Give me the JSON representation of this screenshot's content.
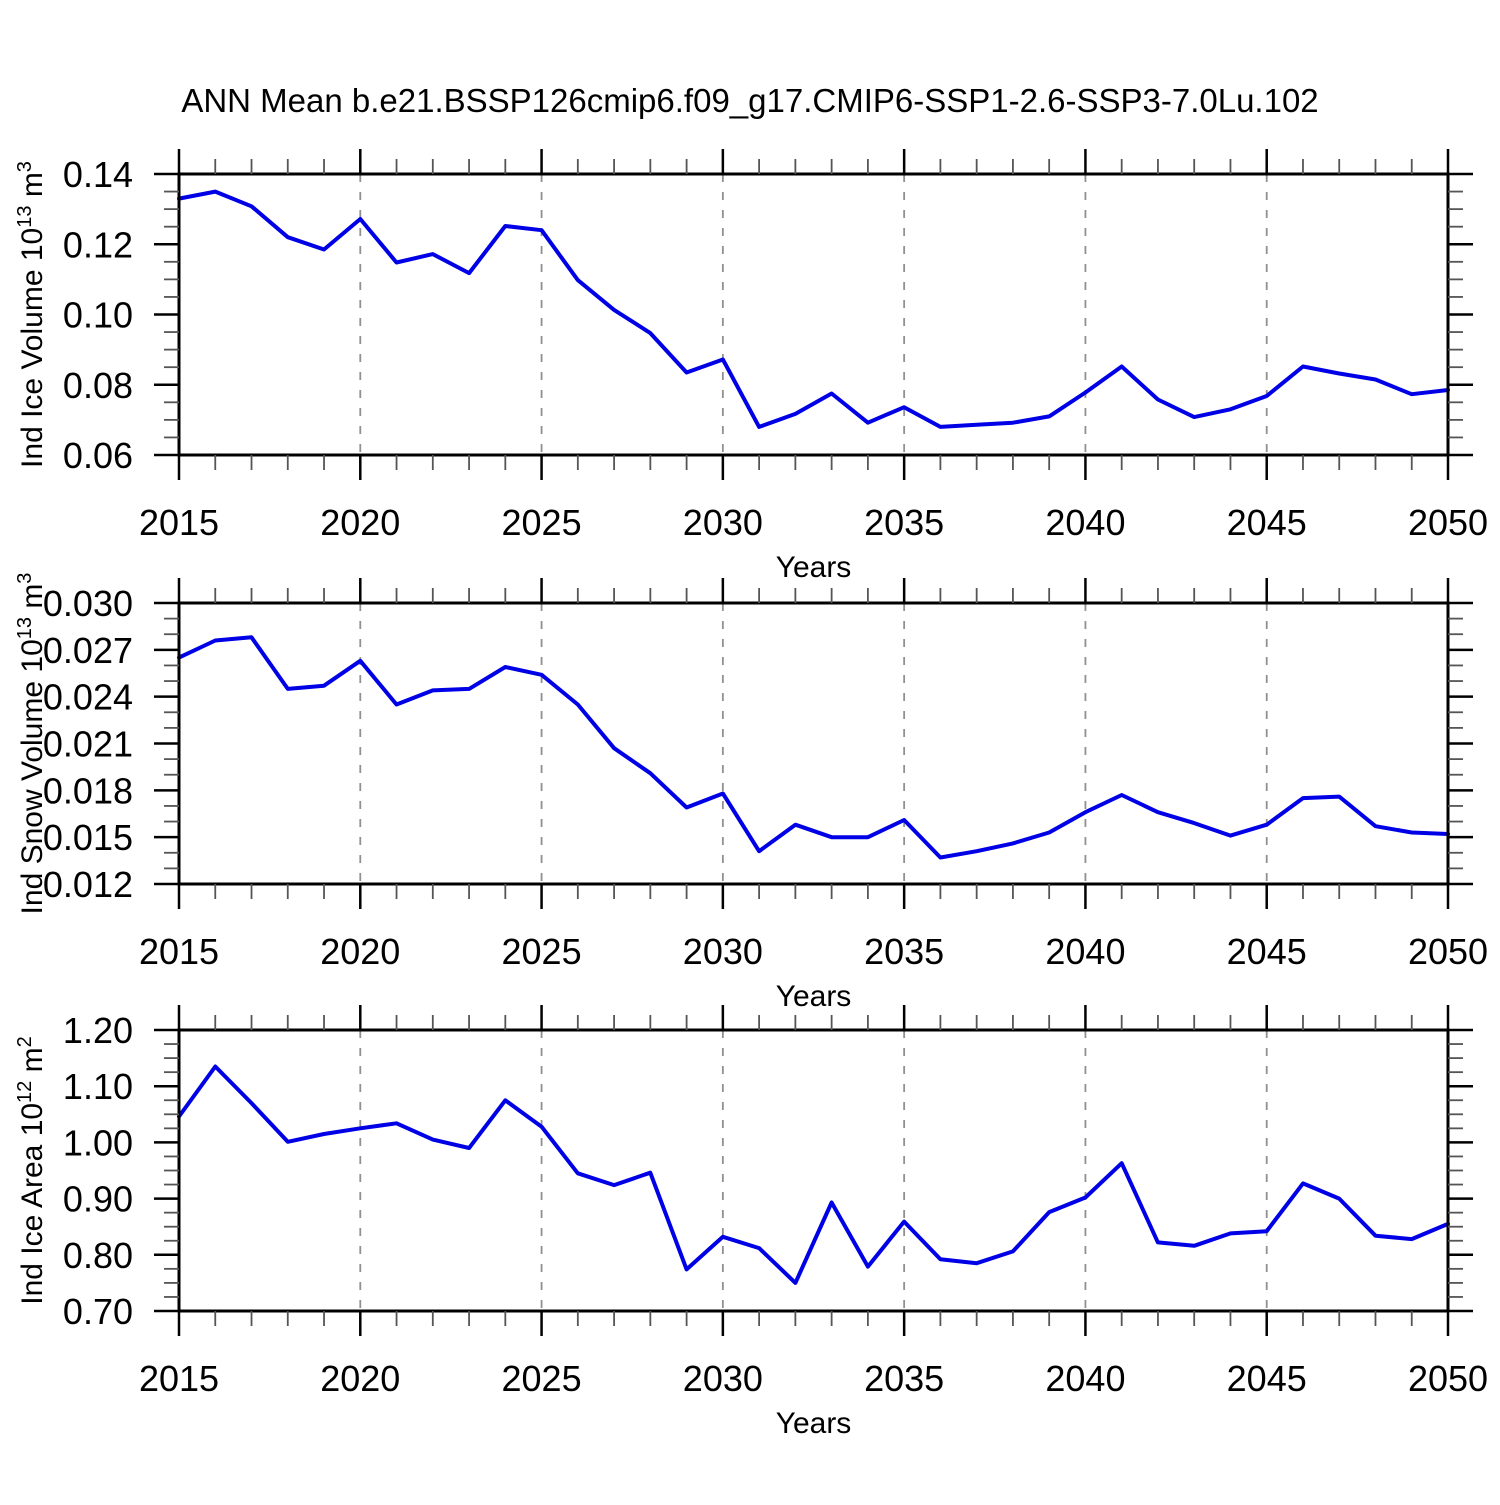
{
  "figure": {
    "title": "ANN Mean b.e21.BSSP126cmip6.f09_g17.CMIP6-SSP1-2.6-SSP3-7.0Lu.102",
    "background_color": "#ffffff",
    "line_color": "#0000e6",
    "grid_color": "#909090",
    "frame_color": "#000000",
    "major_tick_color": "#000000",
    "minor_tick_color": "#555555",
    "text_color": "#000000"
  },
  "chart_data": [
    {
      "type": "line",
      "series_name": "Ind Ice Volume",
      "ylabel": "Ind Ice Volume 10^13 m^3",
      "ylabel_segments": [
        {
          "t": "Ind Ice Volume 10"
        },
        {
          "t": "13",
          "sup": true
        },
        {
          "t": " m"
        },
        {
          "t": "3",
          "sup": true
        }
      ],
      "xlabel": "Years",
      "xlim": [
        2015,
        2050
      ],
      "xtick_major": 5,
      "xtick_minor": 1,
      "xtick_labels": [
        "2015",
        "2020",
        "2025",
        "2030",
        "2035",
        "2040",
        "2045",
        "2050"
      ],
      "gridline_years": [
        2020,
        2025,
        2030,
        2035,
        2040,
        2045
      ],
      "grid_style": "vertical-dashed",
      "ylim": [
        0.06,
        0.14
      ],
      "ytick_major": 0.02,
      "ytick_minor": 0.005,
      "ytick_labels": [
        "0.06",
        "0.08",
        "0.10",
        "0.12",
        "0.14"
      ],
      "x": [
        2015,
        2016,
        2017,
        2018,
        2019,
        2020,
        2021,
        2022,
        2023,
        2024,
        2025,
        2026,
        2027,
        2028,
        2029,
        2030,
        2031,
        2032,
        2033,
        2034,
        2035,
        2036,
        2037,
        2038,
        2039,
        2040,
        2041,
        2042,
        2043,
        2044,
        2045,
        2046,
        2047,
        2048,
        2049,
        2050
      ],
      "values": [
        0.133,
        0.135,
        0.1308,
        0.122,
        0.1185,
        0.1272,
        0.1148,
        0.1172,
        0.1118,
        0.1252,
        0.124,
        0.1098,
        0.1013,
        0.0947,
        0.0835,
        0.0872,
        0.068,
        0.0717,
        0.0775,
        0.0692,
        0.0736,
        0.068,
        0.0686,
        0.0692,
        0.071,
        0.0778,
        0.0852,
        0.0758,
        0.0708,
        0.073,
        0.0768,
        0.0852,
        0.0832,
        0.0815,
        0.0773,
        0.0785
      ]
    },
    {
      "type": "line",
      "series_name": "Ind Snow Volume",
      "ylabel": "Ind Snow Volume 10^13 m^3",
      "ylabel_segments": [
        {
          "t": "Ind Snow Volume 10"
        },
        {
          "t": "13",
          "sup": true
        },
        {
          "t": " m"
        },
        {
          "t": "3",
          "sup": true
        }
      ],
      "xlabel": "Years",
      "xlim": [
        2015,
        2050
      ],
      "xtick_major": 5,
      "xtick_minor": 1,
      "xtick_labels": [
        "2015",
        "2020",
        "2025",
        "2030",
        "2035",
        "2040",
        "2045",
        "2050"
      ],
      "gridline_years": [
        2020,
        2025,
        2030,
        2035,
        2040,
        2045
      ],
      "grid_style": "vertical-dashed",
      "ylim": [
        0.012,
        0.03
      ],
      "ytick_major": 0.003,
      "ytick_minor": 0.001,
      "ytick_labels": [
        "0.012",
        "0.015",
        "0.018",
        "0.021",
        "0.024",
        "0.027",
        "0.030"
      ],
      "x": [
        2015,
        2016,
        2017,
        2018,
        2019,
        2020,
        2021,
        2022,
        2023,
        2024,
        2025,
        2026,
        2027,
        2028,
        2029,
        2030,
        2031,
        2032,
        2033,
        2034,
        2035,
        2036,
        2037,
        2038,
        2039,
        2040,
        2041,
        2042,
        2043,
        2044,
        2045,
        2046,
        2047,
        2048,
        2049,
        2050
      ],
      "values": [
        0.0265,
        0.0276,
        0.0278,
        0.0245,
        0.0247,
        0.0263,
        0.0235,
        0.0244,
        0.0245,
        0.0259,
        0.0254,
        0.0235,
        0.0207,
        0.0191,
        0.0169,
        0.0178,
        0.0141,
        0.0158,
        0.015,
        0.015,
        0.0161,
        0.0137,
        0.0141,
        0.0146,
        0.0153,
        0.0166,
        0.0177,
        0.0166,
        0.0159,
        0.0151,
        0.0158,
        0.0175,
        0.0176,
        0.0157,
        0.0153,
        0.0152
      ]
    },
    {
      "type": "line",
      "series_name": "Ind Ice Area",
      "ylabel": "Ind Ice Area 10^12 m^2",
      "ylabel_segments": [
        {
          "t": "Ind Ice Area 10"
        },
        {
          "t": "12",
          "sup": true
        },
        {
          "t": " m"
        },
        {
          "t": "2",
          "sup": true
        }
      ],
      "xlabel": "Years",
      "xlim": [
        2015,
        2050
      ],
      "xtick_major": 5,
      "xtick_minor": 1,
      "xtick_labels": [
        "2015",
        "2020",
        "2025",
        "2030",
        "2035",
        "2040",
        "2045",
        "2050"
      ],
      "gridline_years": [
        2020,
        2025,
        2030,
        2035,
        2040,
        2045
      ],
      "grid_style": "vertical-dashed",
      "ylim": [
        0.7,
        1.2
      ],
      "ytick_major": 0.1,
      "ytick_minor": 0.025,
      "ytick_labels": [
        "0.70",
        "0.80",
        "0.90",
        "1.00",
        "1.10",
        "1.20"
      ],
      "x": [
        2015,
        2016,
        2017,
        2018,
        2019,
        2020,
        2021,
        2022,
        2023,
        2024,
        2025,
        2026,
        2027,
        2028,
        2029,
        2030,
        2031,
        2032,
        2033,
        2034,
        2035,
        2036,
        2037,
        2038,
        2039,
        2040,
        2041,
        2042,
        2043,
        2044,
        2045,
        2046,
        2047,
        2048,
        2049,
        2050
      ],
      "values": [
        1.046,
        1.135,
        1.07,
        1.001,
        1.015,
        1.025,
        1.034,
        1.005,
        0.99,
        1.075,
        1.028,
        0.945,
        0.924,
        0.946,
        0.774,
        0.832,
        0.812,
        0.75,
        0.893,
        0.779,
        0.859,
        0.792,
        0.785,
        0.806,
        0.876,
        0.902,
        0.963,
        0.822,
        0.816,
        0.838,
        0.842,
        0.927,
        0.9,
        0.834,
        0.828,
        0.855
      ]
    }
  ]
}
